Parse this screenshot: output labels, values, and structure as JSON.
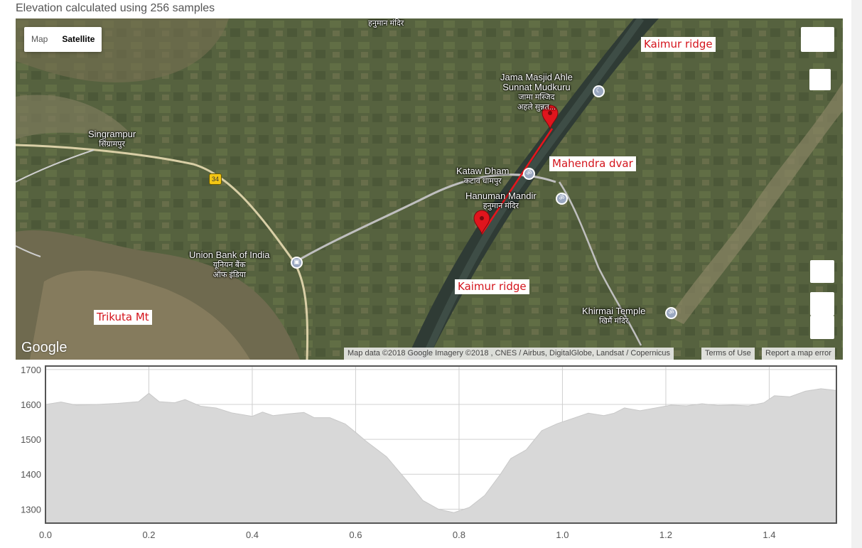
{
  "caption": "Elevation calculated using 256 samples",
  "map": {
    "map_type_tabs": [
      {
        "label": "Map",
        "active": false
      },
      {
        "label": "Satellite",
        "active": true
      }
    ],
    "places": {
      "hanuman_top": "हनुमान मंदिर",
      "jama_masjid_en1": "Jama Masjid Ahle",
      "jama_masjid_en2": "Sunnat Mudkuru",
      "jama_masjid_hi1": "जामा मस्जिद",
      "jama_masjid_hi2": "अहले सुन्नत...",
      "singrampur_en": "Singrampur",
      "singrampur_hi": "सिंग्रामपुर",
      "kataw_en": "Kataw Dham",
      "kataw_hi": "कटाव धामपुर",
      "hanuman_en": "Hanuman Mandir",
      "hanuman_hi": "हनुमान मंदिर",
      "union_en": "Union Bank of India",
      "union_hi1": "यूनियन बैंक",
      "union_hi2": "ऑफ इंडिया",
      "khirmai_en": "Khirmai Temple",
      "khirmai_hi": "खिर्मै मंदिर"
    },
    "route_badge": "34",
    "annotations": {
      "kaimur_top": "Kaimur ridge",
      "mahendra": "Mahendra dvar",
      "kaimur_bottom": "Kaimur ridge",
      "trikuta": "Trikuta Mt"
    },
    "brand": "Google",
    "attribution": "Map data ©2018 Google Imagery ©2018 , CNES / Airbus, DigitalGlobe, Landsat / Copernicus",
    "terms": "Terms of Use",
    "report": "Report a map error",
    "colors": {
      "route_line": "#e8141c",
      "marker": "#e0151d"
    }
  },
  "chart_data": {
    "type": "area",
    "title": "",
    "xlabel": "",
    "ylabel": "",
    "xlim": [
      0,
      1.53
    ],
    "ylim": [
      1260,
      1710
    ],
    "x_ticks": [
      0.0,
      0.2,
      0.4,
      0.6,
      0.8,
      1.0,
      1.2,
      1.4
    ],
    "y_ticks": [
      1300,
      1400,
      1500,
      1600,
      1700
    ],
    "grid": true,
    "fill_color": "#d8d8d8",
    "series": [
      {
        "x": [
          0.0,
          0.03,
          0.06,
          0.1,
          0.14,
          0.18,
          0.2,
          0.22,
          0.25,
          0.27,
          0.3,
          0.33,
          0.36,
          0.4,
          0.42,
          0.44,
          0.47,
          0.5,
          0.52,
          0.55,
          0.58,
          0.6,
          0.62,
          0.66,
          0.7,
          0.73,
          0.76,
          0.79,
          0.82,
          0.85,
          0.88,
          0.9,
          0.93,
          0.96,
          0.99,
          1.02,
          1.05,
          1.08,
          1.1,
          1.12,
          1.15,
          1.18,
          1.21,
          1.24,
          1.27,
          1.3,
          1.33,
          1.36,
          1.39,
          1.41,
          1.44,
          1.47,
          1.5,
          1.53
        ],
        "y": [
          1600,
          1607,
          1598,
          1600,
          1603,
          1608,
          1632,
          1608,
          1605,
          1614,
          1595,
          1590,
          1576,
          1566,
          1578,
          1568,
          1573,
          1577,
          1562,
          1562,
          1544,
          1520,
          1495,
          1450,
          1380,
          1325,
          1300,
          1290,
          1305,
          1340,
          1400,
          1445,
          1470,
          1525,
          1545,
          1560,
          1575,
          1568,
          1575,
          1590,
          1582,
          1590,
          1598,
          1596,
          1602,
          1597,
          1598,
          1596,
          1605,
          1625,
          1622,
          1638,
          1645,
          1640
        ]
      }
    ]
  }
}
